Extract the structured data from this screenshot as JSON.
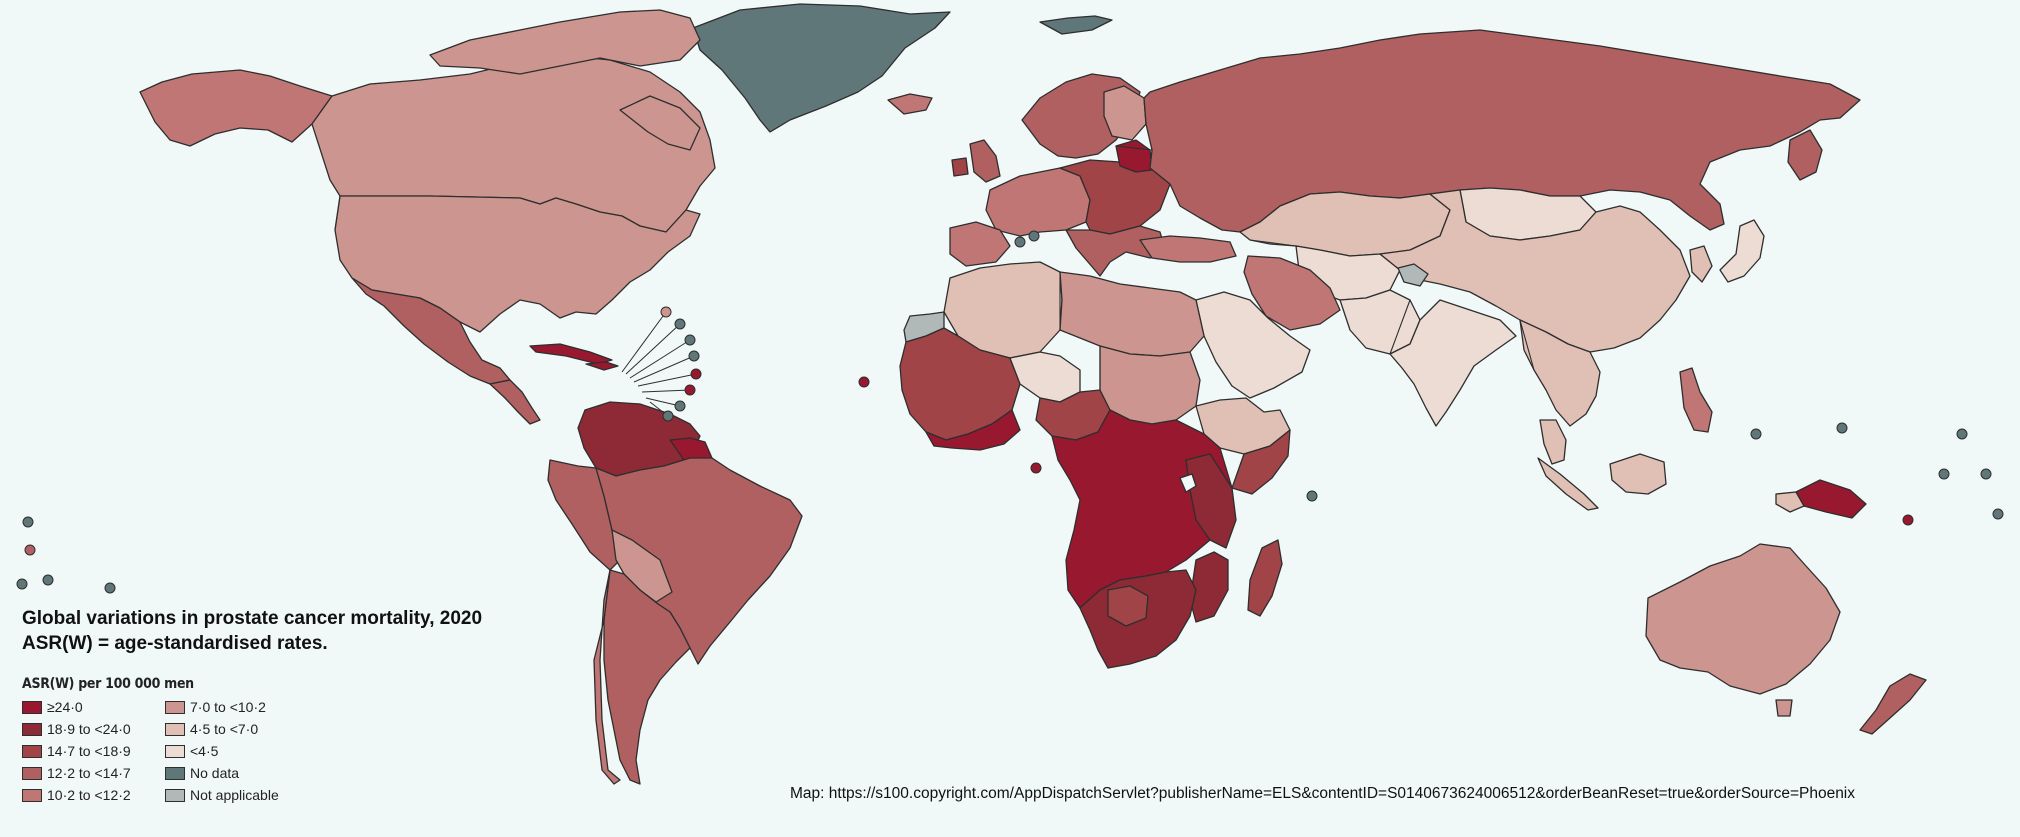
{
  "map": {
    "title_line1": "Global variations in prostate cancer mortality, 2020",
    "title_line2": "ASR(W) = age-standardised rates.",
    "source": "Map: https://s100.copyright.com/AppDispatchServlet?publisherName=ELS&contentID=S0140673624006512&orderBeanReset=true&orderSource=Phoenix"
  },
  "legend": {
    "heading": "ASR(W) per 100 000 men",
    "items": [
      {
        "label": "≥24·0",
        "color": "#98192f"
      },
      {
        "label": "18·9 to <24·0",
        "color": "#8e2a35"
      },
      {
        "label": "14·7 to <18·9",
        "color": "#a04448"
      },
      {
        "label": "12·2 to <14·7",
        "color": "#b06060"
      },
      {
        "label": "10·2 to <12·2",
        "color": "#c07674"
      },
      {
        "label": "7·0 to <10·2",
        "color": "#cd9590"
      },
      {
        "label": "4·5 to <7·0",
        "color": "#e0c0b5"
      },
      {
        "label": "<4·5",
        "color": "#ecdcd3"
      },
      {
        "label": "No data",
        "color": "#5f7779"
      },
      {
        "label": "Not applicable",
        "color": "#b0b8b8"
      }
    ]
  }
}
